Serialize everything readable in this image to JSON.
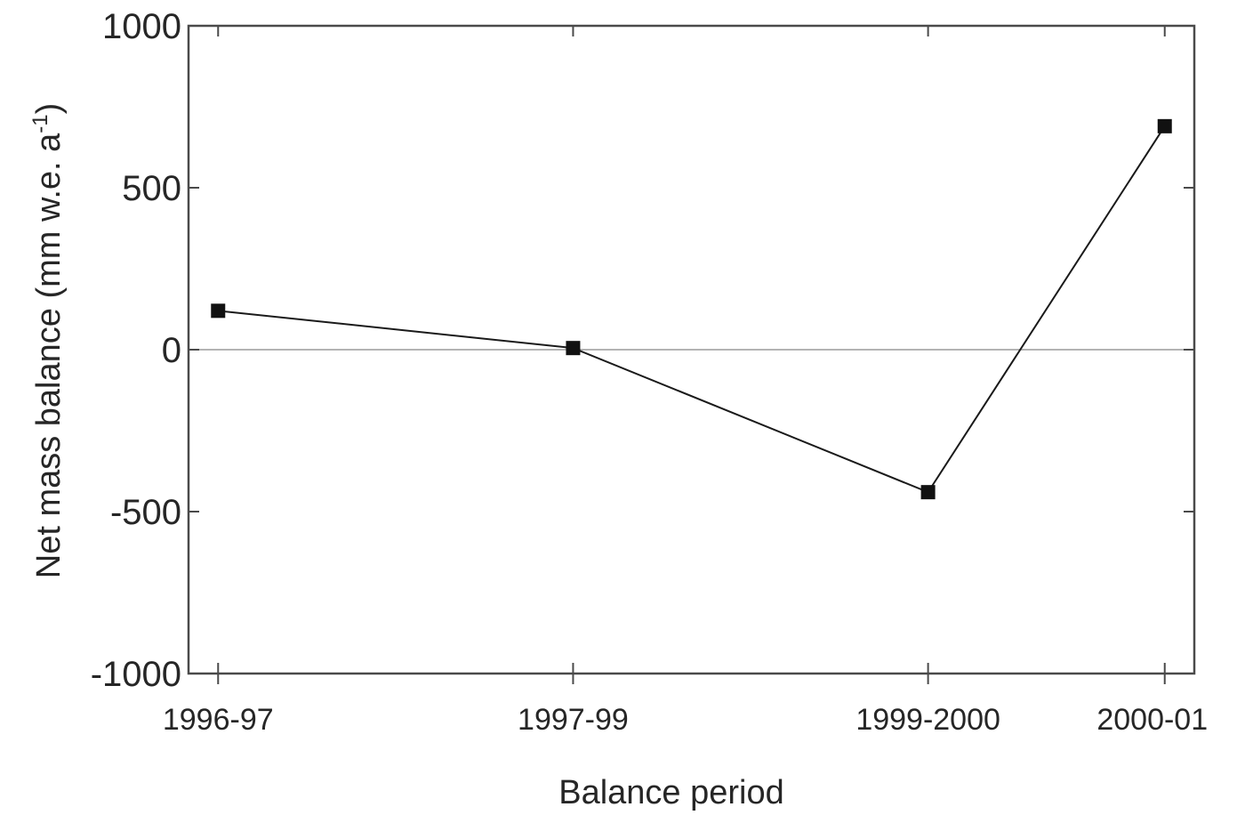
{
  "chart_data": {
    "type": "line",
    "title": "",
    "xlabel": "Balance period",
    "ylabel": "Net mass balance (mm w.e. a",
    "ylabel_superscript": "-1",
    "ylabel_close": ")",
    "categories": [
      "1996-97",
      "1997-99",
      "1999-2000",
      "2000-01"
    ],
    "x_positions": [
      1996.5,
      1998.0,
      1999.5,
      2000.5
    ],
    "series": [
      {
        "values": [
          120,
          5,
          -440,
          690
        ]
      }
    ],
    "ylim": [
      -1000,
      1000
    ],
    "xlim": [
      1996.375,
      2000.625
    ],
    "yticks": [
      -1000,
      -500,
      0,
      500,
      1000
    ],
    "ytick_labels": [
      "-1000",
      "-500",
      "0",
      "500",
      "1000"
    ],
    "zero_line": true,
    "grid": false,
    "marker": "square",
    "colors": {
      "line": "#1a1a1a",
      "marker": "#111111",
      "frame": "#4a4a4a",
      "zero_line": "#9a9a9a"
    }
  }
}
